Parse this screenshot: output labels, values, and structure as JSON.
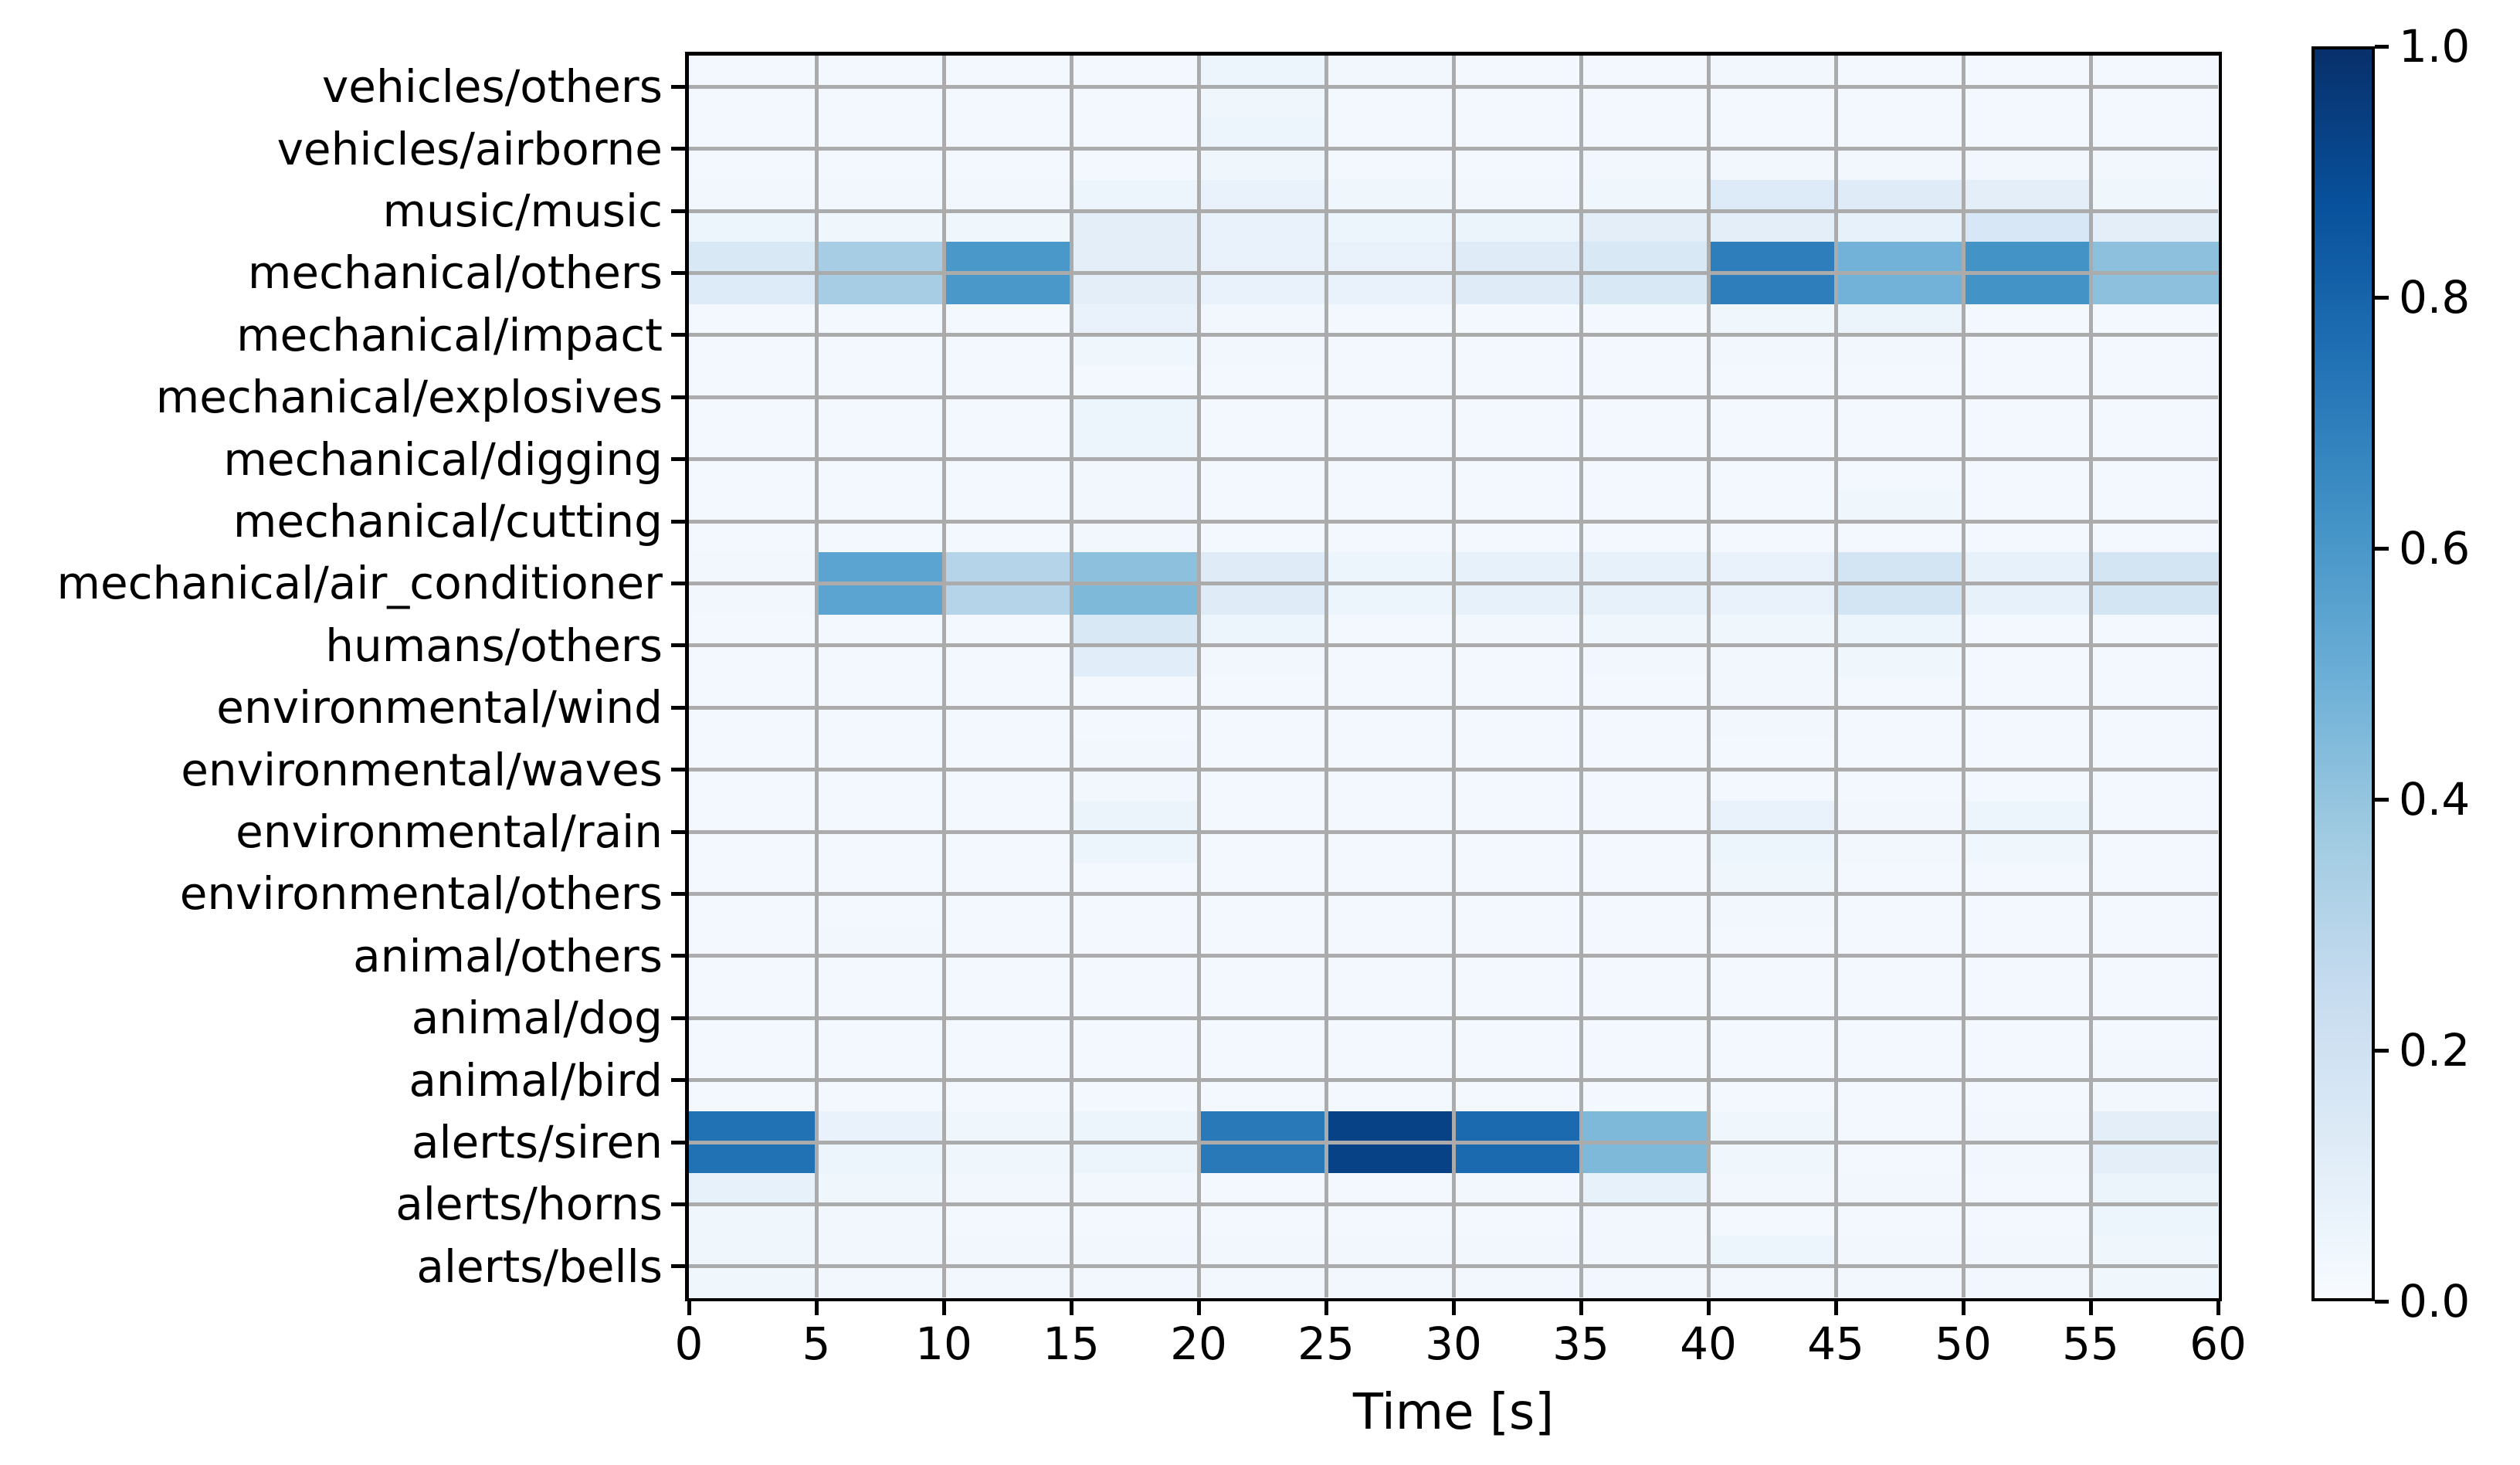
{
  "chart_data": {
    "type": "heatmap",
    "title": "",
    "xlabel": "Time [s]",
    "x_ticks": [
      0,
      5,
      10,
      15,
      20,
      25,
      30,
      35,
      40,
      45,
      50,
      55,
      60
    ],
    "x_range": [
      0,
      60
    ],
    "time_bin_seconds": 5,
    "grid": true,
    "legend_position": "colorbar-right",
    "colorbar": {
      "ticks": [
        0.0,
        0.2,
        0.4,
        0.6,
        0.8,
        1.0
      ],
      "range": [
        0,
        1
      ],
      "cmap": "Blues",
      "gradient_stops": [
        [
          0.0,
          "#f7fbff"
        ],
        [
          0.125,
          "#deebf7"
        ],
        [
          0.25,
          "#c6dbef"
        ],
        [
          0.375,
          "#9ecae1"
        ],
        [
          0.5,
          "#6baed6"
        ],
        [
          0.625,
          "#4292c6"
        ],
        [
          0.75,
          "#2171b5"
        ],
        [
          0.875,
          "#08519c"
        ],
        [
          1.0,
          "#08306b"
        ]
      ]
    },
    "note": "each class row holds an upper and lower sub-band value per 5s bin; values read from Blues colorbar 0-1",
    "rows": [
      {
        "label": "vehicles/others",
        "cells": [
          [
            0.02,
            0.02
          ],
          [
            0.02,
            0.02
          ],
          [
            0.02,
            0.02
          ],
          [
            0.02,
            0.02
          ],
          [
            0.05,
            0.04
          ],
          [
            0.03,
            0.02
          ],
          [
            0.02,
            0.02
          ],
          [
            0.02,
            0.02
          ],
          [
            0.03,
            0.02
          ],
          [
            0.02,
            0.02
          ],
          [
            0.02,
            0.02
          ],
          [
            0.02,
            0.02
          ]
        ]
      },
      {
        "label": "vehicles/airborne",
        "cells": [
          [
            0.02,
            0.02
          ],
          [
            0.02,
            0.02
          ],
          [
            0.02,
            0.02
          ],
          [
            0.02,
            0.02
          ],
          [
            0.05,
            0.04
          ],
          [
            0.02,
            0.02
          ],
          [
            0.02,
            0.02
          ],
          [
            0.02,
            0.03
          ],
          [
            0.02,
            0.03
          ],
          [
            0.02,
            0.03
          ],
          [
            0.02,
            0.03
          ],
          [
            0.02,
            0.03
          ]
        ]
      },
      {
        "label": "music/music",
        "cells": [
          [
            0.03,
            0.05
          ],
          [
            0.03,
            0.04
          ],
          [
            0.03,
            0.04
          ],
          [
            0.05,
            0.1
          ],
          [
            0.07,
            0.07
          ],
          [
            0.04,
            0.05
          ],
          [
            0.03,
            0.06
          ],
          [
            0.04,
            0.1
          ],
          [
            0.13,
            0.1
          ],
          [
            0.12,
            0.08
          ],
          [
            0.1,
            0.16
          ],
          [
            0.04,
            0.1
          ]
        ]
      },
      {
        "label": "mechanical/others",
        "cells": [
          [
            0.15,
            0.13
          ],
          [
            0.35,
            0.35
          ],
          [
            0.6,
            0.6
          ],
          [
            0.1,
            0.1
          ],
          [
            0.07,
            0.07
          ],
          [
            0.07,
            0.07
          ],
          [
            0.12,
            0.12
          ],
          [
            0.15,
            0.15
          ],
          [
            0.7,
            0.7
          ],
          [
            0.48,
            0.48
          ],
          [
            0.62,
            0.62
          ],
          [
            0.42,
            0.42
          ]
        ]
      },
      {
        "label": "mechanical/impact",
        "cells": [
          [
            0.02,
            0.02
          ],
          [
            0.02,
            0.02
          ],
          [
            0.02,
            0.02
          ],
          [
            0.07,
            0.04
          ],
          [
            0.03,
            0.03
          ],
          [
            0.02,
            0.02
          ],
          [
            0.02,
            0.02
          ],
          [
            0.02,
            0.02
          ],
          [
            0.04,
            0.03
          ],
          [
            0.06,
            0.03
          ],
          [
            0.02,
            0.02
          ],
          [
            0.02,
            0.02
          ]
        ]
      },
      {
        "label": "mechanical/explosives",
        "cells": [
          [
            0.02,
            0.02
          ],
          [
            0.02,
            0.02
          ],
          [
            0.02,
            0.02
          ],
          [
            0.02,
            0.05
          ],
          [
            0.02,
            0.02
          ],
          [
            0.02,
            0.02
          ],
          [
            0.02,
            0.02
          ],
          [
            0.02,
            0.02
          ],
          [
            0.02,
            0.02
          ],
          [
            0.02,
            0.02
          ],
          [
            0.02,
            0.02
          ],
          [
            0.02,
            0.02
          ]
        ]
      },
      {
        "label": "mechanical/digging",
        "cells": [
          [
            0.02,
            0.02
          ],
          [
            0.02,
            0.02
          ],
          [
            0.02,
            0.02
          ],
          [
            0.05,
            0.03
          ],
          [
            0.02,
            0.02
          ],
          [
            0.02,
            0.02
          ],
          [
            0.02,
            0.02
          ],
          [
            0.02,
            0.02
          ],
          [
            0.02,
            0.02
          ],
          [
            0.02,
            0.02
          ],
          [
            0.02,
            0.02
          ],
          [
            0.02,
            0.02
          ]
        ]
      },
      {
        "label": "mechanical/cutting",
        "cells": [
          [
            0.02,
            0.02
          ],
          [
            0.02,
            0.02
          ],
          [
            0.02,
            0.02
          ],
          [
            0.03,
            0.03
          ],
          [
            0.02,
            0.02
          ],
          [
            0.02,
            0.02
          ],
          [
            0.02,
            0.02
          ],
          [
            0.02,
            0.02
          ],
          [
            0.02,
            0.02
          ],
          [
            0.04,
            0.02
          ],
          [
            0.02,
            0.02
          ],
          [
            0.02,
            0.02
          ]
        ]
      },
      {
        "label": "mechanical/air_conditioner",
        "cells": [
          [
            0.03,
            0.03
          ],
          [
            0.55,
            0.55
          ],
          [
            0.3,
            0.3
          ],
          [
            0.42,
            0.45
          ],
          [
            0.12,
            0.12
          ],
          [
            0.05,
            0.05
          ],
          [
            0.08,
            0.08
          ],
          [
            0.08,
            0.08
          ],
          [
            0.07,
            0.07
          ],
          [
            0.18,
            0.18
          ],
          [
            0.08,
            0.08
          ],
          [
            0.18,
            0.18
          ]
        ]
      },
      {
        "label": "humans/others",
        "cells": [
          [
            0.02,
            0.02
          ],
          [
            0.02,
            0.02
          ],
          [
            0.02,
            0.02
          ],
          [
            0.15,
            0.11
          ],
          [
            0.05,
            0.03
          ],
          [
            0.02,
            0.02
          ],
          [
            0.03,
            0.02
          ],
          [
            0.04,
            0.03
          ],
          [
            0.04,
            0.03
          ],
          [
            0.05,
            0.04
          ],
          [
            0.02,
            0.02
          ],
          [
            0.02,
            0.02
          ]
        ]
      },
      {
        "label": "environmental/wind",
        "cells": [
          [
            0.02,
            0.02
          ],
          [
            0.02,
            0.02
          ],
          [
            0.02,
            0.02
          ],
          [
            0.02,
            0.02
          ],
          [
            0.02,
            0.02
          ],
          [
            0.02,
            0.02
          ],
          [
            0.02,
            0.02
          ],
          [
            0.02,
            0.02
          ],
          [
            0.03,
            0.03
          ],
          [
            0.02,
            0.02
          ],
          [
            0.02,
            0.02
          ],
          [
            0.02,
            0.02
          ]
        ]
      },
      {
        "label": "environmental/waves",
        "cells": [
          [
            0.02,
            0.02
          ],
          [
            0.02,
            0.02
          ],
          [
            0.02,
            0.02
          ],
          [
            0.03,
            0.03
          ],
          [
            0.02,
            0.02
          ],
          [
            0.02,
            0.02
          ],
          [
            0.02,
            0.02
          ],
          [
            0.02,
            0.02
          ],
          [
            0.02,
            0.02
          ],
          [
            0.02,
            0.02
          ],
          [
            0.02,
            0.02
          ],
          [
            0.02,
            0.02
          ]
        ]
      },
      {
        "label": "environmental/rain",
        "cells": [
          [
            0.02,
            0.02
          ],
          [
            0.02,
            0.02
          ],
          [
            0.02,
            0.02
          ],
          [
            0.06,
            0.05
          ],
          [
            0.02,
            0.02
          ],
          [
            0.02,
            0.02
          ],
          [
            0.02,
            0.02
          ],
          [
            0.02,
            0.02
          ],
          [
            0.07,
            0.05
          ],
          [
            0.03,
            0.03
          ],
          [
            0.05,
            0.04
          ],
          [
            0.02,
            0.02
          ]
        ]
      },
      {
        "label": "environmental/others",
        "cells": [
          [
            0.02,
            0.02
          ],
          [
            0.02,
            0.02
          ],
          [
            0.02,
            0.02
          ],
          [
            0.02,
            0.02
          ],
          [
            0.02,
            0.02
          ],
          [
            0.02,
            0.02
          ],
          [
            0.02,
            0.02
          ],
          [
            0.02,
            0.02
          ],
          [
            0.04,
            0.03
          ],
          [
            0.02,
            0.02
          ],
          [
            0.02,
            0.02
          ],
          [
            0.02,
            0.02
          ]
        ]
      },
      {
        "label": "animal/others",
        "cells": [
          [
            0.02,
            0.02
          ],
          [
            0.03,
            0.02
          ],
          [
            0.02,
            0.02
          ],
          [
            0.02,
            0.02
          ],
          [
            0.02,
            0.02
          ],
          [
            0.02,
            0.02
          ],
          [
            0.02,
            0.02
          ],
          [
            0.02,
            0.02
          ],
          [
            0.02,
            0.02
          ],
          [
            0.02,
            0.02
          ],
          [
            0.02,
            0.02
          ],
          [
            0.02,
            0.02
          ]
        ]
      },
      {
        "label": "animal/dog",
        "cells": [
          [
            0.02,
            0.02
          ],
          [
            0.02,
            0.02
          ],
          [
            0.02,
            0.02
          ],
          [
            0.02,
            0.02
          ],
          [
            0.02,
            0.02
          ],
          [
            0.02,
            0.02
          ],
          [
            0.02,
            0.02
          ],
          [
            0.02,
            0.02
          ],
          [
            0.02,
            0.02
          ],
          [
            0.02,
            0.02
          ],
          [
            0.02,
            0.02
          ],
          [
            0.02,
            0.02
          ]
        ]
      },
      {
        "label": "animal/bird",
        "cells": [
          [
            0.02,
            0.02
          ],
          [
            0.02,
            0.02
          ],
          [
            0.02,
            0.02
          ],
          [
            0.02,
            0.02
          ],
          [
            0.02,
            0.02
          ],
          [
            0.02,
            0.02
          ],
          [
            0.02,
            0.02
          ],
          [
            0.02,
            0.02
          ],
          [
            0.02,
            0.02
          ],
          [
            0.02,
            0.02
          ],
          [
            0.02,
            0.02
          ],
          [
            0.03,
            0.03
          ]
        ]
      },
      {
        "label": "alerts/siren",
        "cells": [
          [
            0.75,
            0.75
          ],
          [
            0.07,
            0.05
          ],
          [
            0.04,
            0.04
          ],
          [
            0.05,
            0.05
          ],
          [
            0.72,
            0.72
          ],
          [
            0.93,
            0.93
          ],
          [
            0.78,
            0.78
          ],
          [
            0.45,
            0.45
          ],
          [
            0.04,
            0.04
          ],
          [
            0.02,
            0.02
          ],
          [
            0.03,
            0.03
          ],
          [
            0.1,
            0.1
          ]
        ]
      },
      {
        "label": "alerts/horns",
        "cells": [
          [
            0.08,
            0.04
          ],
          [
            0.04,
            0.03
          ],
          [
            0.03,
            0.02
          ],
          [
            0.03,
            0.02
          ],
          [
            0.02,
            0.02
          ],
          [
            0.02,
            0.02
          ],
          [
            0.03,
            0.02
          ],
          [
            0.08,
            0.03
          ],
          [
            0.03,
            0.02
          ],
          [
            0.03,
            0.02
          ],
          [
            0.02,
            0.02
          ],
          [
            0.06,
            0.05
          ]
        ]
      },
      {
        "label": "alerts/bells",
        "cells": [
          [
            0.04,
            0.04
          ],
          [
            0.03,
            0.03
          ],
          [
            0.03,
            0.03
          ],
          [
            0.03,
            0.03
          ],
          [
            0.03,
            0.03
          ],
          [
            0.03,
            0.03
          ],
          [
            0.03,
            0.03
          ],
          [
            0.03,
            0.03
          ],
          [
            0.05,
            0.03
          ],
          [
            0.03,
            0.03
          ],
          [
            0.03,
            0.03
          ],
          [
            0.04,
            0.04
          ]
        ]
      }
    ]
  },
  "style": {
    "background": "#ffffff",
    "grid_color": "#ababab",
    "spine_color": "#000000",
    "text_color": "#000000"
  }
}
